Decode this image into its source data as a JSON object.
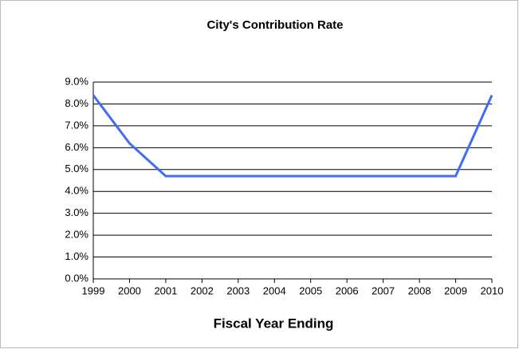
{
  "chart_data": {
    "type": "line",
    "title": "City's Contribution Rate",
    "x_label": "Fiscal Year Ending",
    "x": [
      1999,
      2000,
      2001,
      2002,
      2003,
      2004,
      2005,
      2006,
      2007,
      2008,
      2009,
      2010
    ],
    "series": [
      {
        "color": "#3f6ff0",
        "values": [
          8.4,
          6.2,
          4.7,
          4.7,
          4.7,
          4.7,
          4.7,
          4.7,
          4.7,
          4.7,
          4.7,
          8.4
        ]
      }
    ],
    "xlim": [
      1999,
      2010
    ],
    "xticks": [
      1999,
      2000,
      2001,
      2002,
      2003,
      2004,
      2005,
      2006,
      2007,
      2008,
      2009,
      2010
    ],
    "ylim": [
      0,
      9
    ],
    "yticks": [
      {
        "value": 0,
        "label": "0.0%"
      },
      {
        "value": 1,
        "label": "1.0%"
      },
      {
        "value": 2,
        "label": "2.0%"
      },
      {
        "value": 3,
        "label": "3.0%"
      },
      {
        "value": 4,
        "label": "4.0%"
      },
      {
        "value": 5,
        "label": "5.0%"
      },
      {
        "value": 6,
        "label": "6.0%"
      },
      {
        "value": 7,
        "label": "7.0%"
      },
      {
        "value": 8,
        "label": "8.0%"
      },
      {
        "value": 9,
        "label": "9.0%"
      }
    ],
    "grid": true
  }
}
